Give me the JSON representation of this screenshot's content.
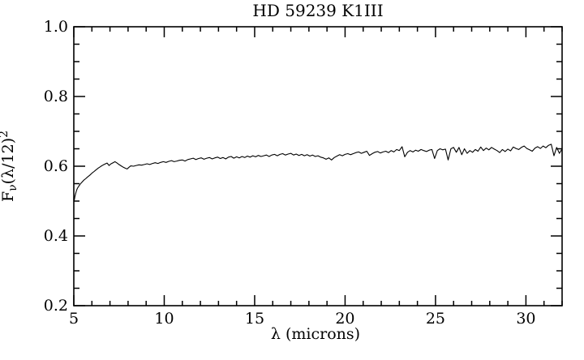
{
  "figure": {
    "background_color": "#ffffff",
    "line_color": "#000000"
  },
  "chart_data": {
    "type": "line",
    "title": "HD 59239 K1III",
    "xlabel": "λ (microns)",
    "ylabel": "Fν(λ/12)²",
    "ylabel_parts": {
      "base": "F",
      "sub": "ν",
      "mid": "(λ/12)",
      "sup": "2"
    },
    "xlim": [
      5,
      32
    ],
    "ylim": [
      0.2,
      1.0
    ],
    "grid": false,
    "legend": "none",
    "x_major_ticks": [
      5,
      10,
      15,
      20,
      25,
      30
    ],
    "x_tick_labels": [
      "5",
      "10",
      "15",
      "20",
      "25",
      "30"
    ],
    "x_minor_step": 1,
    "y_major_ticks": [
      0.2,
      0.4,
      0.6,
      0.8,
      1.0
    ],
    "y_tick_labels": [
      "0.2",
      "0.4",
      "0.6",
      "0.8",
      "1.0"
    ],
    "y_minor_step": 0.05,
    "series": [
      {
        "name": "HD 59239 K1III",
        "points": [
          [
            5.0,
            0.497
          ],
          [
            5.03,
            0.504
          ],
          [
            5.06,
            0.512
          ],
          [
            5.1,
            0.521
          ],
          [
            5.15,
            0.53
          ],
          [
            5.2,
            0.537
          ],
          [
            5.28,
            0.543
          ],
          [
            5.36,
            0.549
          ],
          [
            5.45,
            0.554
          ],
          [
            5.55,
            0.56
          ],
          [
            5.65,
            0.564
          ],
          [
            5.76,
            0.569
          ],
          [
            5.88,
            0.574
          ],
          [
            6.0,
            0.58
          ],
          [
            6.12,
            0.585
          ],
          [
            6.24,
            0.59
          ],
          [
            6.36,
            0.595
          ],
          [
            6.48,
            0.599
          ],
          [
            6.6,
            0.603
          ],
          [
            6.72,
            0.606
          ],
          [
            6.84,
            0.609
          ],
          [
            6.95,
            0.602
          ],
          [
            7.06,
            0.607
          ],
          [
            7.17,
            0.61
          ],
          [
            7.28,
            0.613
          ],
          [
            7.39,
            0.609
          ],
          [
            7.5,
            0.605
          ],
          [
            7.62,
            0.601
          ],
          [
            7.74,
            0.597
          ],
          [
            7.86,
            0.594
          ],
          [
            7.95,
            0.592
          ],
          [
            8.05,
            0.597
          ],
          [
            8.15,
            0.601
          ],
          [
            8.3,
            0.6
          ],
          [
            8.45,
            0.602
          ],
          [
            8.6,
            0.604
          ],
          [
            8.75,
            0.603
          ],
          [
            8.9,
            0.605
          ],
          [
            9.05,
            0.607
          ],
          [
            9.2,
            0.605
          ],
          [
            9.35,
            0.608
          ],
          [
            9.5,
            0.61
          ],
          [
            9.65,
            0.608
          ],
          [
            9.8,
            0.611
          ],
          [
            9.95,
            0.613
          ],
          [
            10.1,
            0.611
          ],
          [
            10.25,
            0.614
          ],
          [
            10.4,
            0.616
          ],
          [
            10.55,
            0.613
          ],
          [
            10.7,
            0.615
          ],
          [
            10.85,
            0.617
          ],
          [
            11.0,
            0.618
          ],
          [
            11.15,
            0.615
          ],
          [
            11.3,
            0.619
          ],
          [
            11.45,
            0.621
          ],
          [
            11.6,
            0.623
          ],
          [
            11.75,
            0.619
          ],
          [
            11.9,
            0.622
          ],
          [
            12.05,
            0.624
          ],
          [
            12.2,
            0.62
          ],
          [
            12.35,
            0.623
          ],
          [
            12.5,
            0.625
          ],
          [
            12.65,
            0.621
          ],
          [
            12.8,
            0.624
          ],
          [
            12.95,
            0.626
          ],
          [
            13.1,
            0.622
          ],
          [
            13.25,
            0.625
          ],
          [
            13.4,
            0.621
          ],
          [
            13.55,
            0.626
          ],
          [
            13.7,
            0.628
          ],
          [
            13.85,
            0.623
          ],
          [
            14.0,
            0.627
          ],
          [
            14.15,
            0.624
          ],
          [
            14.3,
            0.628
          ],
          [
            14.45,
            0.625
          ],
          [
            14.6,
            0.629
          ],
          [
            14.75,
            0.626
          ],
          [
            14.9,
            0.63
          ],
          [
            15.05,
            0.627
          ],
          [
            15.2,
            0.631
          ],
          [
            15.35,
            0.628
          ],
          [
            15.5,
            0.63
          ],
          [
            15.65,
            0.632
          ],
          [
            15.8,
            0.628
          ],
          [
            15.95,
            0.632
          ],
          [
            16.1,
            0.634
          ],
          [
            16.25,
            0.63
          ],
          [
            16.4,
            0.634
          ],
          [
            16.55,
            0.636
          ],
          [
            16.7,
            0.632
          ],
          [
            16.85,
            0.635
          ],
          [
            17.0,
            0.637
          ],
          [
            17.15,
            0.632
          ],
          [
            17.3,
            0.635
          ],
          [
            17.45,
            0.631
          ],
          [
            17.6,
            0.634
          ],
          [
            17.75,
            0.63
          ],
          [
            17.9,
            0.633
          ],
          [
            18.05,
            0.629
          ],
          [
            18.2,
            0.632
          ],
          [
            18.35,
            0.628
          ],
          [
            18.5,
            0.63
          ],
          [
            18.65,
            0.626
          ],
          [
            18.8,
            0.624
          ],
          [
            18.95,
            0.62
          ],
          [
            19.1,
            0.624
          ],
          [
            19.25,
            0.618
          ],
          [
            19.4,
            0.625
          ],
          [
            19.55,
            0.629
          ],
          [
            19.7,
            0.633
          ],
          [
            19.85,
            0.63
          ],
          [
            20.0,
            0.634
          ],
          [
            20.15,
            0.636
          ],
          [
            20.3,
            0.633
          ],
          [
            20.45,
            0.636
          ],
          [
            20.6,
            0.639
          ],
          [
            20.75,
            0.641
          ],
          [
            20.9,
            0.637
          ],
          [
            21.05,
            0.64
          ],
          [
            21.2,
            0.643
          ],
          [
            21.35,
            0.631
          ],
          [
            21.5,
            0.636
          ],
          [
            21.65,
            0.64
          ],
          [
            21.8,
            0.642
          ],
          [
            21.95,
            0.638
          ],
          [
            22.1,
            0.641
          ],
          [
            22.25,
            0.643
          ],
          [
            22.4,
            0.639
          ],
          [
            22.55,
            0.645
          ],
          [
            22.7,
            0.641
          ],
          [
            22.85,
            0.648
          ],
          [
            23.0,
            0.645
          ],
          [
            23.15,
            0.656
          ],
          [
            23.3,
            0.627
          ],
          [
            23.45,
            0.64
          ],
          [
            23.6,
            0.645
          ],
          [
            23.75,
            0.641
          ],
          [
            23.9,
            0.646
          ],
          [
            24.05,
            0.643
          ],
          [
            24.2,
            0.648
          ],
          [
            24.35,
            0.645
          ],
          [
            24.5,
            0.642
          ],
          [
            24.65,
            0.646
          ],
          [
            24.8,
            0.648
          ],
          [
            24.95,
            0.622
          ],
          [
            25.1,
            0.645
          ],
          [
            25.25,
            0.65
          ],
          [
            25.4,
            0.647
          ],
          [
            25.55,
            0.649
          ],
          [
            25.7,
            0.618
          ],
          [
            25.85,
            0.65
          ],
          [
            26.0,
            0.654
          ],
          [
            26.15,
            0.64
          ],
          [
            26.3,
            0.654
          ],
          [
            26.45,
            0.633
          ],
          [
            26.6,
            0.65
          ],
          [
            26.75,
            0.637
          ],
          [
            26.9,
            0.645
          ],
          [
            27.05,
            0.64
          ],
          [
            27.2,
            0.648
          ],
          [
            27.35,
            0.643
          ],
          [
            27.5,
            0.655
          ],
          [
            27.65,
            0.645
          ],
          [
            27.8,
            0.652
          ],
          [
            27.95,
            0.647
          ],
          [
            28.1,
            0.654
          ],
          [
            28.25,
            0.649
          ],
          [
            28.4,
            0.645
          ],
          [
            28.55,
            0.639
          ],
          [
            28.7,
            0.648
          ],
          [
            28.85,
            0.642
          ],
          [
            29.0,
            0.649
          ],
          [
            29.15,
            0.644
          ],
          [
            29.3,
            0.655
          ],
          [
            29.45,
            0.651
          ],
          [
            29.6,
            0.648
          ],
          [
            29.75,
            0.654
          ],
          [
            29.9,
            0.658
          ],
          [
            30.05,
            0.651
          ],
          [
            30.2,
            0.647
          ],
          [
            30.35,
            0.643
          ],
          [
            30.5,
            0.652
          ],
          [
            30.65,
            0.656
          ],
          [
            30.8,
            0.651
          ],
          [
            30.95,
            0.658
          ],
          [
            31.1,
            0.653
          ],
          [
            31.25,
            0.66
          ],
          [
            31.4,
            0.663
          ],
          [
            31.55,
            0.63
          ],
          [
            31.7,
            0.654
          ],
          [
            31.85,
            0.637
          ],
          [
            32.0,
            0.65
          ]
        ]
      }
    ]
  }
}
